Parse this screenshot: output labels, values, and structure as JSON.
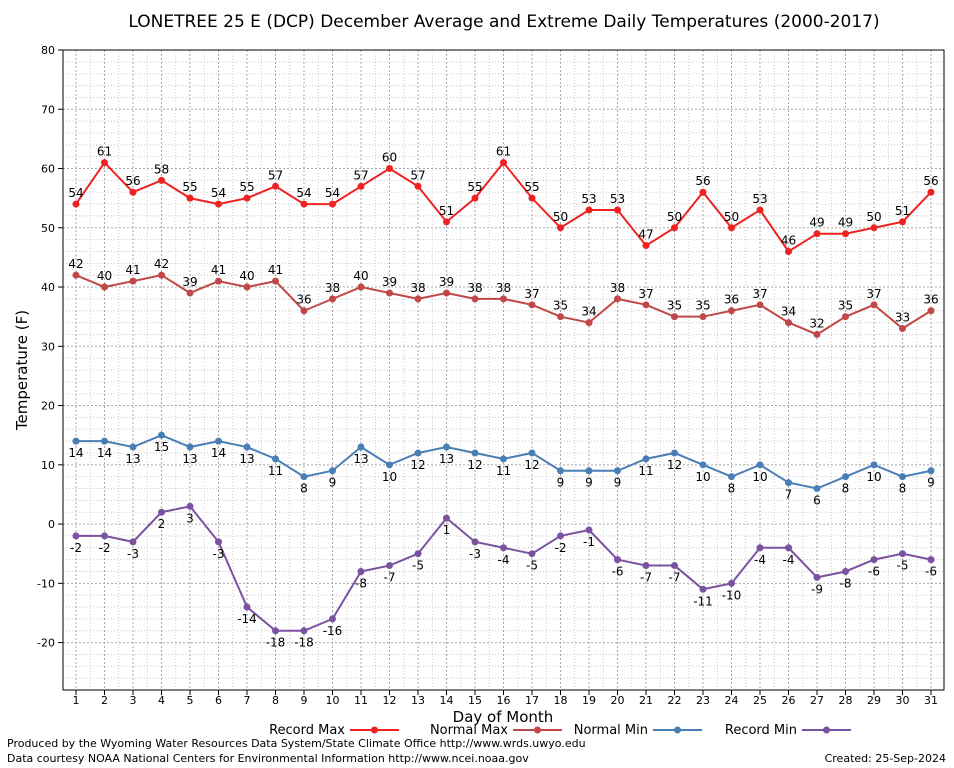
{
  "chart_data": {
    "type": "line",
    "title": "LONETREE 25 E (DCP) December Average and Extreme Daily Temperatures (2000-2017)",
    "xlabel": "Day of Month",
    "ylabel": "Temperature (F)",
    "ylim": [
      -28,
      80
    ],
    "y_ticks": [
      -20,
      -10,
      0,
      10,
      20,
      30,
      40,
      50,
      60,
      70,
      80
    ],
    "x": [
      1,
      2,
      3,
      4,
      5,
      6,
      7,
      8,
      9,
      10,
      11,
      12,
      13,
      14,
      15,
      16,
      17,
      18,
      19,
      20,
      21,
      22,
      23,
      24,
      25,
      26,
      27,
      28,
      29,
      30,
      31
    ],
    "grid": true,
    "legend_position": "bottom",
    "series": [
      {
        "name": "Record Max",
        "color": "#ee2222",
        "label_position": "above",
        "values": [
          54,
          61,
          56,
          58,
          55,
          54,
          55,
          57,
          54,
          54,
          57,
          60,
          57,
          51,
          55,
          61,
          55,
          50,
          53,
          53,
          47,
          50,
          56,
          50,
          53,
          46,
          49,
          49,
          50,
          51,
          56
        ]
      },
      {
        "name": "Normal Max",
        "color": "#c04848",
        "label_position": "above",
        "values": [
          42,
          40,
          41,
          42,
          39,
          41,
          40,
          41,
          36,
          38,
          40,
          39,
          38,
          39,
          38,
          38,
          37,
          35,
          34,
          38,
          37,
          35,
          35,
          36,
          37,
          34,
          32,
          35,
          37,
          33,
          36
        ]
      },
      {
        "name": "Normal Min",
        "color": "#4a7fb5",
        "label_position": "below",
        "values": [
          14,
          14,
          13,
          15,
          13,
          14,
          13,
          11,
          8,
          9,
          13,
          10,
          12,
          13,
          12,
          11,
          12,
          9,
          9,
          9,
          11,
          12,
          10,
          8,
          10,
          7,
          6,
          8,
          10,
          8,
          9
        ]
      },
      {
        "name": "Record Min",
        "color": "#7a52a0",
        "label_position": "below",
        "values": [
          -2,
          -2,
          -3,
          2,
          3,
          -3,
          -14,
          -18,
          -18,
          -16,
          -8,
          -7,
          -5,
          1,
          -3,
          -4,
          -5,
          -2,
          -1,
          -6,
          -7,
          -7,
          -11,
          -10,
          -4,
          -4,
          -9,
          -8,
          -6,
          -5,
          -6
        ]
      }
    ]
  },
  "footer": {
    "producer": "Produced by the Wyoming Water Resources Data System/State Climate Office http://www.wrds.uwyo.edu",
    "courtesy": "Data courtesy NOAA National Centers for Environmental Information http://www.ncei.noaa.gov",
    "created": "Created:  25-Sep-2024"
  }
}
